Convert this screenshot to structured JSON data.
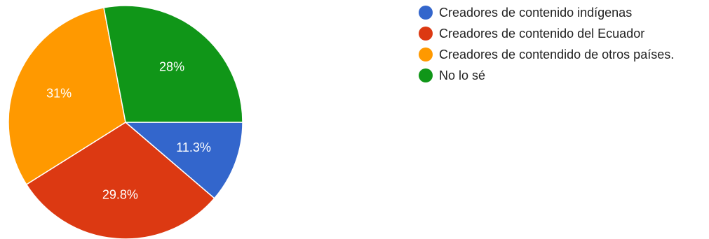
{
  "chart_data": {
    "type": "pie",
    "title": "",
    "legend_position": "right",
    "series": [
      {
        "values": [
          11.3,
          29.8,
          31,
          28
        ],
        "value_labels": [
          "11.3%",
          "29.8%",
          "31%",
          "28%"
        ]
      }
    ],
    "categories": [
      "Creadores de contenido indígenas",
      "Creadores de contenido del Ecuador",
      "Creadores de contendido de otros países.",
      "No lo sé"
    ],
    "colors": [
      "#3366cc",
      "#dc3912",
      "#ff9900",
      "#109618"
    ],
    "start_angle_deg": 90,
    "direction": "clockwise"
  }
}
